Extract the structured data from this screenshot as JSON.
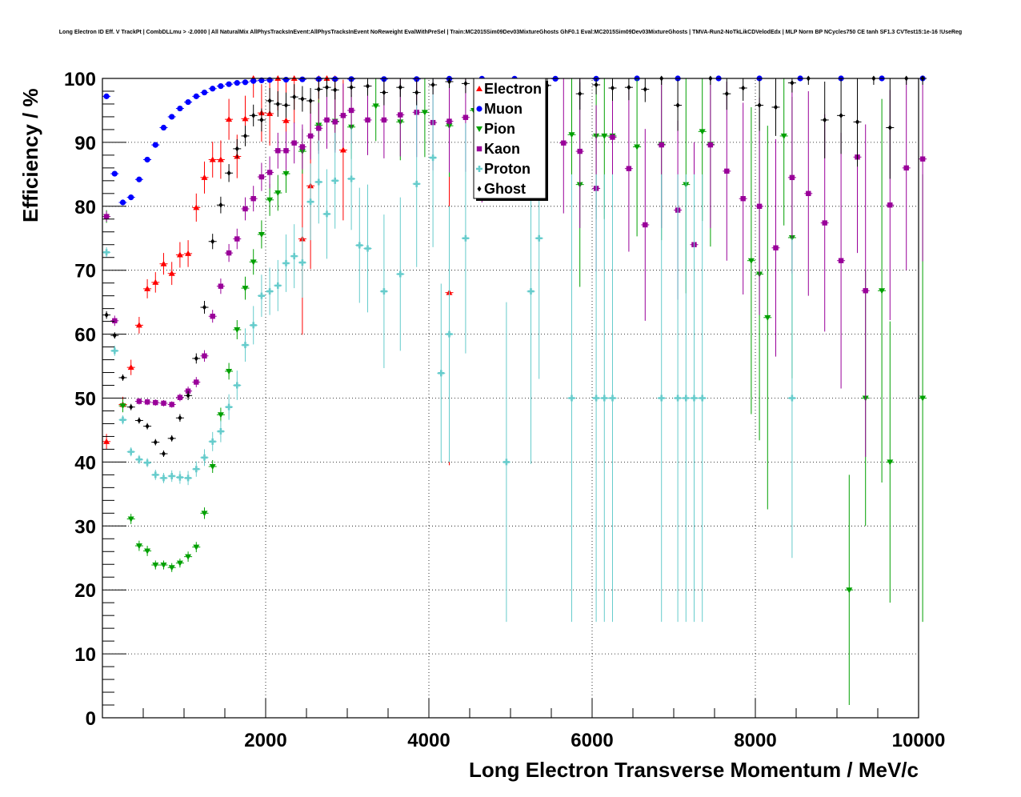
{
  "chart_data": {
    "type": "scatter",
    "title": "Long Electron ID Eff. V TrackPt | CombDLLmu > -2.0000 | All NaturalMix AllPhysTracksInEvent:AllPhysTracksInEvent NoReweight EvalWithPreSel | Train:MC2015Sim09Dev03MixtureGhosts GhF0.1 Eval:MC2015Sim09Dev03MixtureGhosts | TMVA-Run2-NoTkLikCDVelodEdx | MLP Norm BP NCycles750 CE tanh SF1.3 CVTest15:1e-16 !UseReg",
    "xlabel": "Long Electron Transverse Momentum / MeV/c",
    "ylabel": "Efficiency / %",
    "xlim": [
      0,
      10000
    ],
    "ylim": [
      0,
      100
    ],
    "xticks": [
      "2000",
      "4000",
      "6000",
      "8000",
      "10000"
    ],
    "yticks": [
      "0",
      "10",
      "20",
      "30",
      "40",
      "50",
      "60",
      "70",
      "80",
      "90",
      "100"
    ],
    "grid": true,
    "legend_position": "top-center",
    "series": [
      {
        "name": "Electron",
        "color": "#ff0000",
        "marker": "triangle-up",
        "x": [
          0,
          200,
          300,
          400,
          500,
          600,
          700,
          800,
          900,
          1000,
          1100,
          1200,
          1300,
          1400,
          1500,
          1600,
          1700,
          1800,
          1900,
          2000,
          2100,
          2200,
          2300,
          2400,
          2500,
          2600,
          2700,
          2800,
          2900,
          4200
        ],
        "y": [
          43.2,
          49,
          54.8,
          61.4,
          67.1,
          68.1,
          71,
          69.5,
          72.4,
          72.6,
          79.8,
          84.5,
          87.3,
          87.3,
          93.6,
          87.8,
          93.7,
          100,
          94.6,
          94.5,
          100,
          93.4,
          100,
          74.9,
          83.2,
          100,
          100,
          100,
          88.8,
          66.5
        ],
        "err": [
          1.2,
          1.2,
          1.2,
          1.3,
          1.5,
          1.6,
          1.7,
          1.8,
          2,
          2.1,
          2.2,
          2.5,
          2.8,
          3,
          3.2,
          3.4,
          3.6,
          3,
          4.5,
          5,
          5,
          6,
          7,
          15,
          13,
          8,
          8,
          8,
          11,
          27
        ]
      },
      {
        "name": "Muon",
        "color": "#0000ff",
        "marker": "circle",
        "x": [
          0,
          100,
          200,
          300,
          400,
          500,
          600,
          700,
          800,
          900,
          1000,
          1100,
          1200,
          1300,
          1400,
          1500,
          1600,
          1700,
          1800,
          1900,
          2000,
          2200,
          2400,
          2600,
          2800,
          3000,
          3400,
          3800,
          4200,
          4600,
          5000,
          5500,
          6000,
          6500,
          7000,
          7500,
          8000,
          8500,
          9000,
          9500,
          10000
        ],
        "y": [
          97.2,
          85.1,
          80.6,
          81.4,
          84.2,
          87.3,
          89.6,
          92.3,
          94,
          95.3,
          96.3,
          97.2,
          97.8,
          98.4,
          98.8,
          99.1,
          99.3,
          99.4,
          99.6,
          99.7,
          99.75,
          99.8,
          99.85,
          99.9,
          99.9,
          99.9,
          99.9,
          99.9,
          99.95,
          99.95,
          99.95,
          99.95,
          99.95,
          100,
          100,
          100,
          100,
          100,
          100,
          100,
          100
        ],
        "err": [
          0.3,
          0.3,
          0.3,
          0.3,
          0.3,
          0.3,
          0.3,
          0.3,
          0.3,
          0.3,
          0.3,
          0.3,
          0.3,
          0.2,
          0.2,
          0.2,
          0.2,
          0.2,
          0.2,
          0.2,
          0.2,
          0.2,
          0.2,
          0.2,
          0.2,
          0.2,
          0.2,
          0.2,
          0.2,
          0.2,
          0.2,
          0.2,
          0.2,
          0.2,
          0.2,
          0.2,
          0.2,
          0.2,
          0.2,
          0.2,
          0.2
        ]
      },
      {
        "name": "Pion",
        "color": "#00a000",
        "marker": "triangle-down",
        "x": [
          0,
          200,
          300,
          400,
          500,
          600,
          700,
          800,
          900,
          1000,
          1100,
          1200,
          1300,
          1400,
          1500,
          1600,
          1700,
          1800,
          1900,
          2000,
          2100,
          2200,
          2400,
          2600,
          2800,
          3000,
          3300,
          3600,
          3900,
          4200,
          4500,
          5700,
          5800,
          6000,
          6100,
          6200,
          6500,
          6800,
          7100,
          7300,
          7400,
          7900,
          8000,
          8100,
          8300,
          8400,
          9100,
          9300,
          9500,
          9600,
          10000
        ],
        "y": [
          78.4,
          48.8,
          31.1,
          26.9,
          26.1,
          23.9,
          23.9,
          23.5,
          24.2,
          25.2,
          26.7,
          32,
          39.3,
          47.4,
          54.2,
          60.7,
          67.2,
          71.3,
          75.6,
          81,
          82.1,
          85.1,
          88.6,
          92.7,
          93.3,
          92.4,
          95.7,
          93.2,
          94.7,
          92.6,
          95,
          91.2,
          83.4,
          91,
          91,
          91,
          89.3,
          89.7,
          83.4,
          91.7,
          89.7,
          71.5,
          69.4,
          62.6,
          91,
          75.1,
          20,
          50,
          66.8,
          40,
          50
        ],
        "err": [
          1,
          1,
          0.8,
          0.8,
          0.8,
          0.7,
          0.7,
          0.7,
          0.7,
          0.8,
          0.8,
          0.9,
          1,
          1.1,
          1.3,
          1.5,
          1.8,
          2,
          2.2,
          2.5,
          2.8,
          3,
          3.5,
          4,
          4.5,
          5,
          5.5,
          6,
          7,
          8,
          9,
          13,
          16,
          13,
          13,
          13,
          14,
          15,
          17,
          14,
          16,
          24,
          26,
          30,
          14,
          22,
          18,
          20,
          30,
          22,
          35
        ]
      },
      {
        "name": "Kaon",
        "color": "#990099",
        "marker": "square",
        "x": [
          0,
          100,
          400,
          500,
          600,
          700,
          800,
          900,
          1000,
          1100,
          1200,
          1300,
          1400,
          1500,
          1600,
          1700,
          1800,
          1900,
          2000,
          2100,
          2200,
          2300,
          2400,
          2500,
          2600,
          2700,
          2800,
          2900,
          3000,
          3200,
          3400,
          3600,
          3800,
          4000,
          4200,
          4400,
          4600,
          5000,
          5300,
          5600,
          5800,
          6000,
          6200,
          6400,
          6600,
          6800,
          7000,
          7200,
          7400,
          7600,
          7800,
          8000,
          8200,
          8400,
          8600,
          8800,
          9000,
          9200,
          9300,
          9600,
          9800,
          10000
        ],
        "y": [
          78.4,
          62.1,
          49.5,
          49.4,
          49.3,
          49.2,
          49,
          50.1,
          51.1,
          52.5,
          56.6,
          62.8,
          67.5,
          72.7,
          74.9,
          79.6,
          81.2,
          84.6,
          85.3,
          88.7,
          88.7,
          89.9,
          89.3,
          91,
          92.2,
          93.5,
          93.2,
          94.2,
          95,
          93.5,
          93.5,
          94.3,
          94.7,
          93.1,
          93.3,
          93.9,
          89.6,
          91.2,
          93.7,
          89.9,
          88.6,
          82.8,
          90.8,
          85.9,
          77.1,
          89.6,
          79.4,
          74,
          89.6,
          85.5,
          81.2,
          80,
          73.5,
          84.5,
          82,
          77.4,
          71.5,
          87.7,
          66.8,
          80.2,
          86,
          87.4
        ],
        "err": [
          0.8,
          0.8,
          0.5,
          0.5,
          0.5,
          0.5,
          0.5,
          0.6,
          0.7,
          0.8,
          0.9,
          1,
          1.2,
          1.4,
          1.6,
          1.8,
          2,
          2.2,
          2.5,
          2.8,
          3,
          3.2,
          3.5,
          3.7,
          4,
          4.5,
          4.8,
          5,
          5.2,
          5.5,
          6,
          6.5,
          7,
          7.5,
          8,
          8.5,
          9,
          10,
          10,
          11,
          12,
          13,
          12,
          13,
          15,
          13,
          14,
          16,
          13,
          14,
          15,
          17,
          17,
          15,
          16,
          17,
          20,
          15,
          26,
          18,
          16,
          16
        ]
      },
      {
        "name": "Proton",
        "color": "#66cccc",
        "marker": "cross",
        "x": [
          0,
          100,
          200,
          300,
          400,
          500,
          600,
          700,
          800,
          900,
          1000,
          1100,
          1200,
          1300,
          1400,
          1500,
          1600,
          1700,
          1800,
          1900,
          2000,
          2100,
          2200,
          2300,
          2400,
          2500,
          2600,
          2700,
          2800,
          3000,
          3100,
          3200,
          3400,
          3600,
          3800,
          4000,
          4100,
          4200,
          4400,
          4900,
          5200,
          5300,
          5700,
          6000,
          6100,
          6200,
          6800,
          7000,
          7100,
          7200,
          7300,
          8400
        ],
        "y": [
          72.8,
          57.4,
          46.6,
          41.6,
          40.4,
          39.9,
          38,
          37.5,
          37.8,
          37.6,
          37.5,
          38.9,
          40.7,
          43.2,
          44.8,
          48.6,
          52,
          58.3,
          61.4,
          66,
          66.7,
          67.6,
          71.1,
          72.2,
          71.2,
          80.7,
          83.8,
          78.8,
          84,
          84.3,
          73.9,
          73.4,
          66.7,
          69.4,
          83.5,
          87.6,
          53.9,
          60,
          75,
          40,
          66.7,
          75,
          50,
          50,
          50,
          50,
          50,
          50,
          50,
          50,
          50,
          50
        ],
        "err": [
          0.8,
          0.8,
          0.7,
          0.7,
          0.7,
          0.7,
          0.8,
          0.8,
          0.9,
          1,
          1.1,
          1.2,
          1.3,
          1.5,
          1.7,
          2,
          2.3,
          2.6,
          3,
          3.3,
          3.7,
          4,
          4.5,
          5,
          5.5,
          6,
          6.5,
          7,
          7.5,
          8,
          9,
          10,
          12,
          12,
          13,
          14,
          14,
          20,
          18,
          25,
          27,
          22,
          35,
          35,
          35,
          35,
          35,
          35,
          35,
          35,
          35,
          25
        ]
      },
      {
        "name": "Ghost",
        "color": "#000000",
        "marker": "diamond",
        "x": [
          0,
          100,
          200,
          300,
          400,
          500,
          600,
          700,
          800,
          900,
          1000,
          1100,
          1200,
          1300,
          1400,
          1500,
          1600,
          1700,
          1800,
          1900,
          2000,
          2100,
          2200,
          2300,
          2400,
          2500,
          2600,
          2700,
          2800,
          3000,
          3200,
          3400,
          3600,
          3800,
          4000,
          4200,
          4400,
          4600,
          4800,
          5000,
          5400,
          5800,
          6000,
          6200,
          6400,
          6600,
          6800,
          7000,
          7400,
          7600,
          7800,
          8000,
          8200,
          8400,
          8600,
          8800,
          9000,
          9200,
          9400,
          9600,
          9800,
          10000
        ],
        "y": [
          63,
          59.8,
          53.2,
          48.6,
          46.5,
          45.6,
          43.1,
          41.3,
          43.7,
          46.9,
          50.4,
          56.2,
          64.2,
          74.5,
          80.2,
          85.2,
          89,
          91,
          94.2,
          93.5,
          96.5,
          96,
          95.8,
          97.1,
          96.8,
          96.5,
          98.3,
          98.6,
          98.2,
          98.6,
          98.8,
          97.8,
          98.6,
          97.8,
          99,
          99.5,
          99.2,
          98.6,
          97.8,
          99.7,
          98.9,
          97.6,
          99,
          98.5,
          98.6,
          98.3,
          100,
          95.8,
          100,
          97.6,
          98.5,
          95.8,
          95.5,
          99.3,
          100,
          93.5,
          94.2,
          93.2,
          100,
          92.3,
          100,
          100
        ],
        "err": [
          0.6,
          0.5,
          0.5,
          0.5,
          0.5,
          0.5,
          0.5,
          0.5,
          0.5,
          0.6,
          0.7,
          0.8,
          1,
          1.2,
          1.3,
          1.4,
          1.5,
          1.6,
          1.7,
          1.8,
          2,
          2,
          2,
          2,
          2,
          2,
          1.5,
          1.5,
          1.5,
          1.5,
          1.5,
          2,
          1.5,
          2,
          1.5,
          1,
          1.5,
          2,
          2.5,
          1,
          1.5,
          2.5,
          1.5,
          2,
          2,
          2,
          1,
          4,
          1,
          2.5,
          2,
          4,
          4.5,
          1.5,
          1,
          6,
          6,
          7,
          1,
          8,
          1,
          1
        ]
      }
    ]
  }
}
